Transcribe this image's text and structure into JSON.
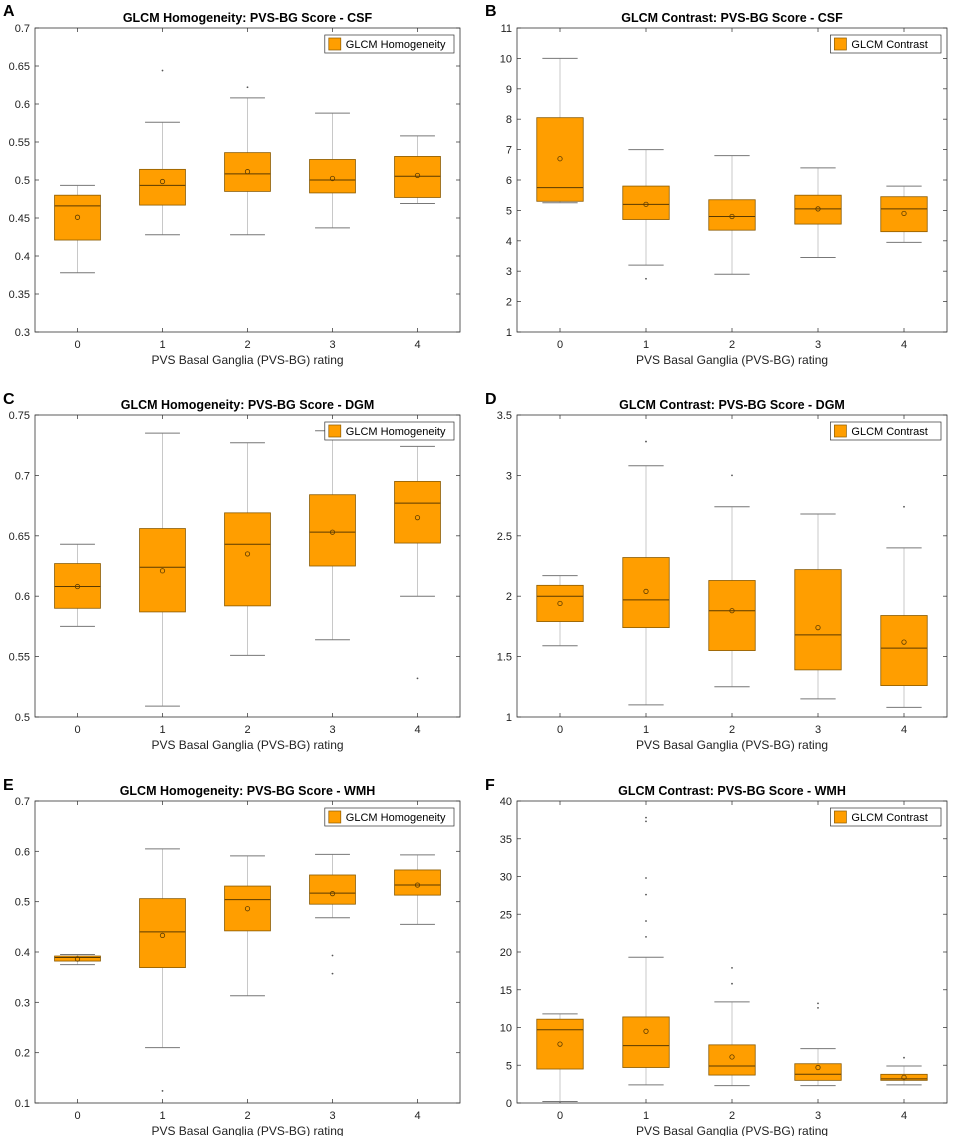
{
  "figure": {
    "fill_color": "#FF9E00",
    "edge_color": "#8a5a00",
    "median_color": "#5a3a00"
  },
  "chart_data": [
    {
      "panel": "A",
      "type": "box",
      "title": "GLCM Homogeneity: PVS-BG Score - CSF",
      "xlabel": "PVS Basal Ganglia (PVS-BG) rating",
      "ylabel": "",
      "legend": "GLCM Homogeneity",
      "legend_position": "top-right",
      "categories": [
        "0",
        "1",
        "2",
        "3",
        "4"
      ],
      "ylim": [
        0.3,
        0.7
      ],
      "yticks": [
        0.3,
        0.35,
        0.4,
        0.45,
        0.5,
        0.55,
        0.6,
        0.65,
        0.7
      ],
      "ytick_labels": [
        "0.3",
        "0.35",
        "0.4",
        "0.45",
        "0.5",
        "0.55",
        "0.6",
        "0.65",
        "0.7"
      ],
      "boxes": [
        {
          "category": "0",
          "whisker_low": 0.378,
          "q1": 0.421,
          "median": 0.466,
          "q3": 0.48,
          "whisker_high": 0.493,
          "mean": 0.451,
          "outliers": []
        },
        {
          "category": "1",
          "whisker_low": 0.428,
          "q1": 0.467,
          "median": 0.493,
          "q3": 0.514,
          "whisker_high": 0.576,
          "mean": 0.498,
          "outliers": [
            0.644
          ]
        },
        {
          "category": "2",
          "whisker_low": 0.428,
          "q1": 0.485,
          "median": 0.508,
          "q3": 0.536,
          "whisker_high": 0.608,
          "mean": 0.511,
          "outliers": [
            0.622
          ]
        },
        {
          "category": "3",
          "whisker_low": 0.437,
          "q1": 0.483,
          "median": 0.5,
          "q3": 0.527,
          "whisker_high": 0.588,
          "mean": 0.502,
          "outliers": []
        },
        {
          "category": "4",
          "whisker_low": 0.469,
          "q1": 0.477,
          "median": 0.505,
          "q3": 0.531,
          "whisker_high": 0.558,
          "mean": 0.506,
          "outliers": []
        }
      ]
    },
    {
      "panel": "B",
      "type": "box",
      "title": "GLCM Contrast: PVS-BG Score - CSF",
      "xlabel": "PVS Basal Ganglia (PVS-BG) rating",
      "ylabel": "",
      "legend": "GLCM Contrast",
      "legend_position": "top-right",
      "categories": [
        "0",
        "1",
        "2",
        "3",
        "4"
      ],
      "ylim": [
        1,
        11
      ],
      "yticks": [
        1,
        2,
        3,
        4,
        5,
        6,
        7,
        8,
        9,
        10,
        11
      ],
      "ytick_labels": [
        "1",
        "2",
        "3",
        "4",
        "5",
        "6",
        "7",
        "8",
        "9",
        "10",
        "11"
      ],
      "boxes": [
        {
          "category": "0",
          "whisker_low": 5.25,
          "q1": 5.3,
          "median": 5.75,
          "q3": 8.05,
          "whisker_high": 10.0,
          "mean": 6.7,
          "outliers": []
        },
        {
          "category": "1",
          "whisker_low": 3.2,
          "q1": 4.7,
          "median": 5.2,
          "q3": 5.8,
          "whisker_high": 7.0,
          "mean": 5.2,
          "outliers": [
            2.75
          ]
        },
        {
          "category": "2",
          "whisker_low": 2.9,
          "q1": 4.35,
          "median": 4.8,
          "q3": 5.35,
          "whisker_high": 6.8,
          "mean": 4.8,
          "outliers": []
        },
        {
          "category": "3",
          "whisker_low": 3.45,
          "q1": 4.55,
          "median": 5.05,
          "q3": 5.5,
          "whisker_high": 6.4,
          "mean": 5.05,
          "outliers": []
        },
        {
          "category": "4",
          "whisker_low": 3.95,
          "q1": 4.3,
          "median": 5.05,
          "q3": 5.45,
          "whisker_high": 5.8,
          "mean": 4.9,
          "outliers": []
        }
      ]
    },
    {
      "panel": "C",
      "type": "box",
      "title": "GLCM Homogeneity: PVS-BG Score - DGM",
      "xlabel": "PVS Basal Ganglia (PVS-BG) rating",
      "ylabel": "",
      "legend": "GLCM Homogeneity",
      "legend_position": "top-right",
      "categories": [
        "0",
        "1",
        "2",
        "3",
        "4"
      ],
      "ylim": [
        0.5,
        0.75
      ],
      "yticks": [
        0.5,
        0.55,
        0.6,
        0.65,
        0.7,
        0.75
      ],
      "ytick_labels": [
        "0.5",
        "0.55",
        "0.6",
        "0.65",
        "0.7",
        "0.75"
      ],
      "boxes": [
        {
          "category": "0",
          "whisker_low": 0.575,
          "q1": 0.59,
          "median": 0.608,
          "q3": 0.627,
          "whisker_high": 0.643,
          "mean": 0.608,
          "outliers": []
        },
        {
          "category": "1",
          "whisker_low": 0.509,
          "q1": 0.587,
          "median": 0.624,
          "q3": 0.656,
          "whisker_high": 0.735,
          "mean": 0.621,
          "outliers": []
        },
        {
          "category": "2",
          "whisker_low": 0.551,
          "q1": 0.592,
          "median": 0.643,
          "q3": 0.669,
          "whisker_high": 0.727,
          "mean": 0.635,
          "outliers": []
        },
        {
          "category": "3",
          "whisker_low": 0.564,
          "q1": 0.625,
          "median": 0.653,
          "q3": 0.684,
          "whisker_high": 0.737,
          "mean": 0.653,
          "outliers": []
        },
        {
          "category": "4",
          "whisker_low": 0.6,
          "q1": 0.644,
          "median": 0.677,
          "q3": 0.695,
          "whisker_high": 0.724,
          "mean": 0.665,
          "outliers": [
            0.532
          ]
        }
      ]
    },
    {
      "panel": "D",
      "type": "box",
      "title": "GLCM Contrast: PVS-BG Score - DGM",
      "xlabel": "PVS Basal Ganglia (PVS-BG) rating",
      "ylabel": "",
      "legend": "GLCM Contrast",
      "legend_position": "top-right",
      "categories": [
        "0",
        "1",
        "2",
        "3",
        "4"
      ],
      "ylim": [
        1,
        3.5
      ],
      "yticks": [
        1,
        1.5,
        2,
        2.5,
        3,
        3.5
      ],
      "ytick_labels": [
        "1",
        "1.5",
        "2",
        "2.5",
        "3",
        "3.5"
      ],
      "boxes": [
        {
          "category": "0",
          "whisker_low": 1.59,
          "q1": 1.79,
          "median": 2.0,
          "q3": 2.09,
          "whisker_high": 2.17,
          "mean": 1.94,
          "outliers": []
        },
        {
          "category": "1",
          "whisker_low": 1.1,
          "q1": 1.74,
          "median": 1.97,
          "q3": 2.32,
          "whisker_high": 3.08,
          "mean": 2.04,
          "outliers": [
            3.28
          ]
        },
        {
          "category": "2",
          "whisker_low": 1.25,
          "q1": 1.55,
          "median": 1.88,
          "q3": 2.13,
          "whisker_high": 2.74,
          "mean": 1.88,
          "outliers": [
            3.0
          ]
        },
        {
          "category": "3",
          "whisker_low": 1.15,
          "q1": 1.39,
          "median": 1.68,
          "q3": 2.22,
          "whisker_high": 2.68,
          "mean": 1.74,
          "outliers": []
        },
        {
          "category": "4",
          "whisker_low": 1.08,
          "q1": 1.26,
          "median": 1.57,
          "q3": 1.84,
          "whisker_high": 2.4,
          "mean": 1.62,
          "outliers": [
            2.74
          ]
        }
      ]
    },
    {
      "panel": "E",
      "type": "box",
      "title": "GLCM Homogeneity: PVS-BG Score - WMH",
      "xlabel": "PVS Basal Ganglia (PVS-BG) rating",
      "ylabel": "",
      "legend": "GLCM Homogeneity",
      "legend_position": "top-right",
      "categories": [
        "0",
        "1",
        "2",
        "3",
        "4"
      ],
      "ylim": [
        0.1,
        0.7
      ],
      "yticks": [
        0.1,
        0.2,
        0.3,
        0.4,
        0.5,
        0.6,
        0.7
      ],
      "ytick_labels": [
        "0.1",
        "0.2",
        "0.3",
        "0.4",
        "0.5",
        "0.6",
        "0.7"
      ],
      "boxes": [
        {
          "category": "0",
          "whisker_low": 0.375,
          "q1": 0.382,
          "median": 0.389,
          "q3": 0.392,
          "whisker_high": 0.395,
          "mean": 0.386,
          "outliers": []
        },
        {
          "category": "1",
          "whisker_low": 0.21,
          "q1": 0.369,
          "median": 0.44,
          "q3": 0.506,
          "whisker_high": 0.605,
          "mean": 0.433,
          "outliers": [
            0.124
          ]
        },
        {
          "category": "2",
          "whisker_low": 0.313,
          "q1": 0.442,
          "median": 0.504,
          "q3": 0.531,
          "whisker_high": 0.591,
          "mean": 0.486,
          "outliers": []
        },
        {
          "category": "3",
          "whisker_low": 0.468,
          "q1": 0.495,
          "median": 0.517,
          "q3": 0.553,
          "whisker_high": 0.594,
          "mean": 0.516,
          "outliers": [
            0.393,
            0.357
          ]
        },
        {
          "category": "4",
          "whisker_low": 0.455,
          "q1": 0.513,
          "median": 0.533,
          "q3": 0.563,
          "whisker_high": 0.593,
          "mean": 0.533,
          "outliers": []
        }
      ]
    },
    {
      "panel": "F",
      "type": "box",
      "title": "GLCM Contrast: PVS-BG Score - WMH",
      "xlabel": "PVS Basal Ganglia (PVS-BG) rating",
      "ylabel": "",
      "legend": "GLCM Contrast",
      "legend_position": "top-right",
      "categories": [
        "0",
        "1",
        "2",
        "3",
        "4"
      ],
      "ylim": [
        0,
        40
      ],
      "yticks": [
        0,
        5,
        10,
        15,
        20,
        25,
        30,
        35,
        40
      ],
      "ytick_labels": [
        "0",
        "5",
        "10",
        "15",
        "20",
        "25",
        "30",
        "35",
        "40"
      ],
      "boxes": [
        {
          "category": "0",
          "whisker_low": 0.2,
          "q1": 4.5,
          "median": 9.7,
          "q3": 11.1,
          "whisker_high": 11.8,
          "mean": 7.8,
          "outliers": []
        },
        {
          "category": "1",
          "whisker_low": 2.4,
          "q1": 4.7,
          "median": 7.6,
          "q3": 11.4,
          "whisker_high": 19.3,
          "mean": 9.5,
          "outliers": [
            22.0,
            24.1,
            27.6,
            29.8,
            37.3,
            37.8
          ]
        },
        {
          "category": "2",
          "whisker_low": 2.3,
          "q1": 3.7,
          "median": 4.9,
          "q3": 7.7,
          "whisker_high": 13.4,
          "mean": 6.1,
          "outliers": [
            15.8,
            17.9
          ]
        },
        {
          "category": "3",
          "whisker_low": 2.3,
          "q1": 3.0,
          "median": 3.8,
          "q3": 5.2,
          "whisker_high": 7.2,
          "mean": 4.7,
          "outliers": [
            12.6,
            13.2
          ]
        },
        {
          "category": "4",
          "whisker_low": 2.4,
          "q1": 3.0,
          "median": 3.2,
          "q3": 3.8,
          "whisker_high": 4.9,
          "mean": 3.4,
          "outliers": [
            6.0
          ]
        }
      ]
    }
  ]
}
